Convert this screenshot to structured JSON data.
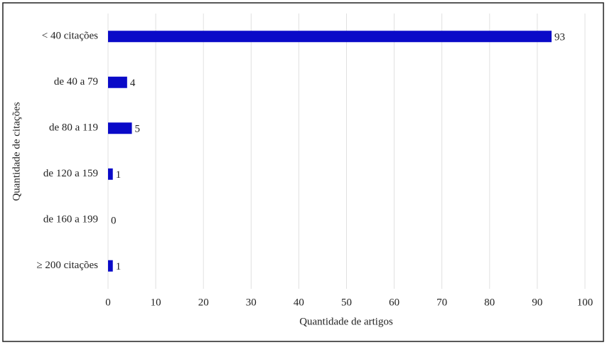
{
  "chart_data": {
    "type": "bar",
    "orientation": "horizontal",
    "categories": [
      "< 40 citações",
      "de 40 a 79",
      "de 80 a 119",
      "de 120 a 159",
      "de 160 a 199",
      "≥ 200 citações"
    ],
    "values": [
      93,
      4,
      5,
      1,
      0,
      1
    ],
    "color": "#0a0ac8",
    "x_label": "Quantidade de artigos",
    "y_label": "Quantidade de citações",
    "xlim": [
      0,
      100
    ],
    "xticks": [
      0,
      10,
      20,
      30,
      40,
      50,
      60,
      70,
      80,
      90,
      100
    ],
    "grid": true
  }
}
